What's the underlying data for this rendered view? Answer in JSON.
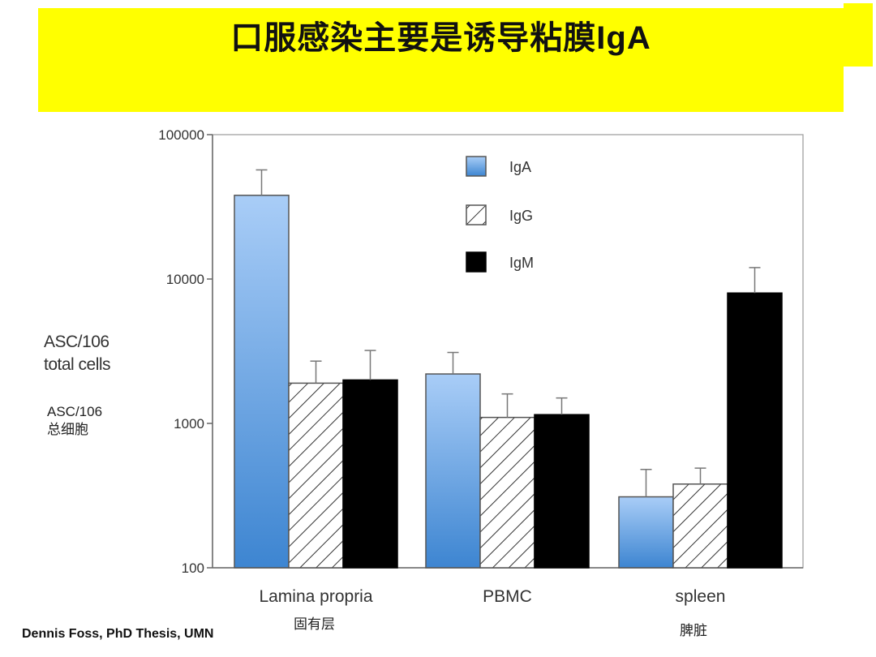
{
  "slide": {
    "title_cn": "口服感染主要是诱导粘膜",
    "title_latin": "IgA",
    "ylabel_en_line1": "ASC/106",
    "ylabel_en_line2": "total cells",
    "ylabel_zh_line1": "ASC/106",
    "ylabel_zh_line2": "总细胞",
    "category_zh": [
      "固有层",
      "",
      "脾脏"
    ],
    "credit": "Dennis Foss, PhD Thesis, UMN"
  },
  "colors": {
    "title_band": "#ffff00",
    "iga_top": "#a9cdf7",
    "iga_bottom": "#3d85d1",
    "igm": "#000000",
    "igg_hatch": "#333333"
  },
  "chart_data": {
    "type": "bar",
    "y_scale": "log",
    "ylim": [
      100,
      100000
    ],
    "y_ticks": [
      100000,
      10000,
      1000,
      100
    ],
    "y_tick_labels": [
      "100000",
      "10000",
      "1000",
      "100"
    ],
    "categories": [
      "Lamina propria",
      "PBMC",
      "spleen"
    ],
    "series": [
      {
        "name": "IgA",
        "values": [
          38000,
          2200,
          310
        ],
        "errors_upper": [
          57000,
          3100,
          480
        ],
        "fill": "blue-gradient"
      },
      {
        "name": "IgG",
        "values": [
          1900,
          1100,
          380
        ],
        "errors_upper": [
          2700,
          1600,
          490
        ],
        "fill": "hatched"
      },
      {
        "name": "IgM",
        "values": [
          2000,
          1150,
          8000
        ],
        "errors_upper": [
          3200,
          1500,
          12000
        ],
        "fill": "black"
      }
    ],
    "legend_position": "top-center",
    "grid": false
  }
}
